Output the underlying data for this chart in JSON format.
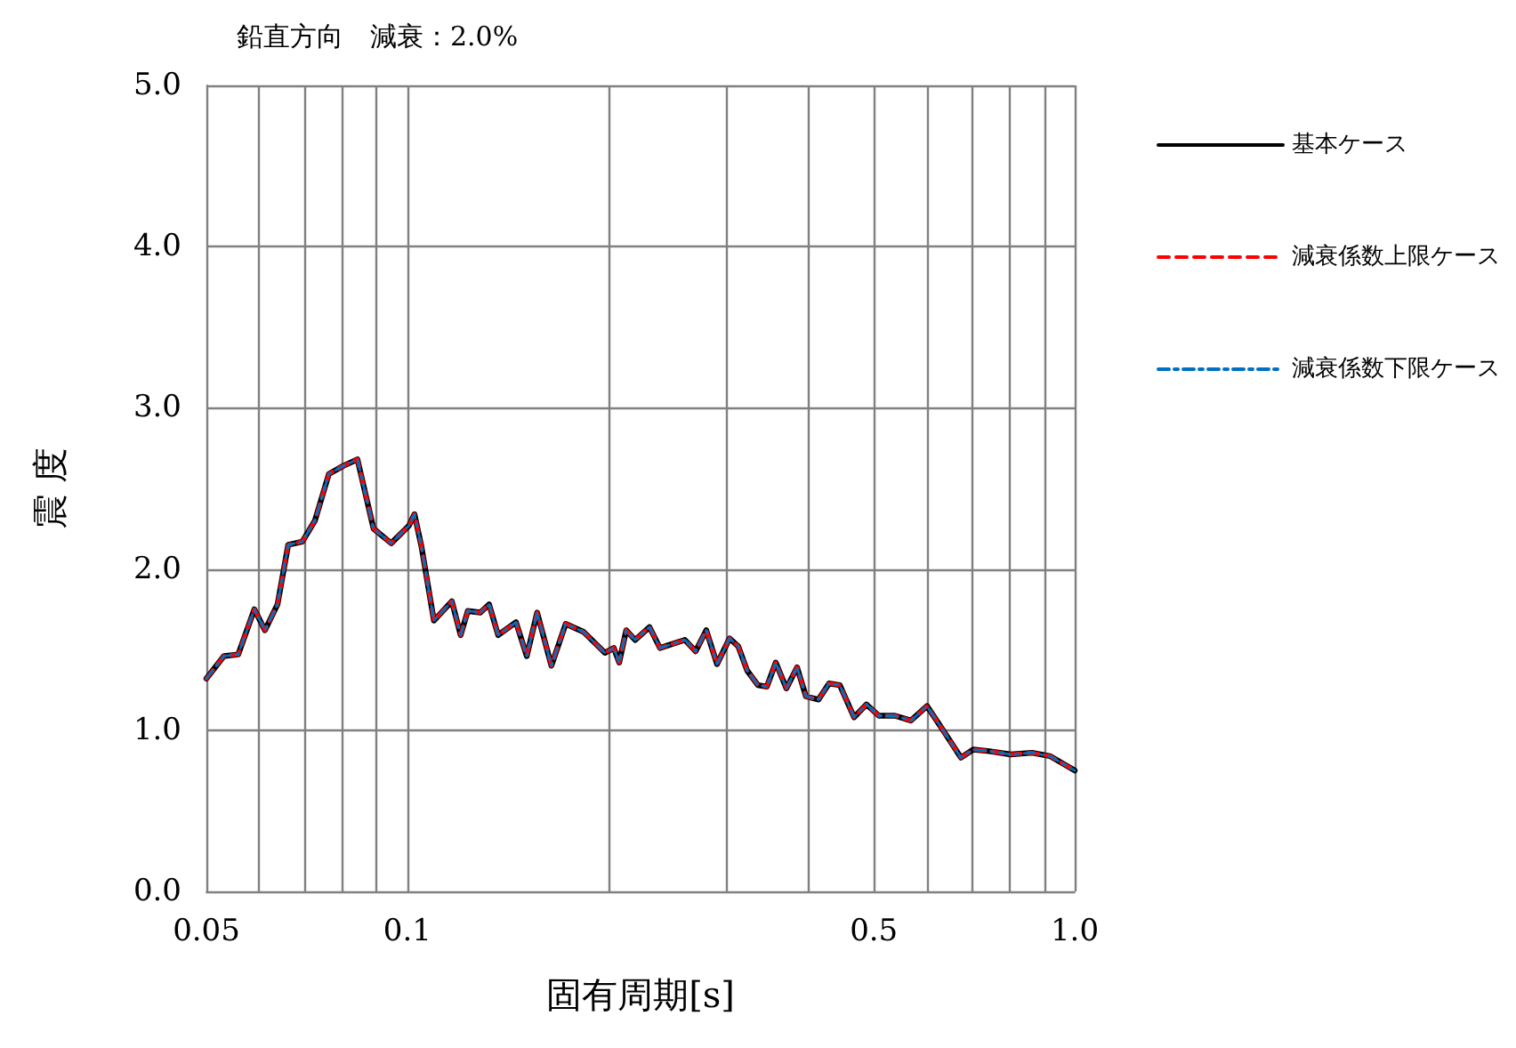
{
  "chart_data": {
    "type": "line",
    "title": "鉛直方向　減衰：2.0%",
    "xlabel": "固有周期[s]",
    "ylabel": "震 度",
    "x": [
      0.05,
      0.0531,
      0.0558,
      0.059,
      0.0612,
      0.0639,
      0.0663,
      0.0696,
      0.0727,
      0.0763,
      0.0802,
      0.0842,
      0.089,
      0.0946,
      0.1006,
      0.1025,
      0.105,
      0.1096,
      0.1166,
      0.1202,
      0.1232,
      0.1286,
      0.1326,
      0.1368,
      0.1455,
      0.151,
      0.1565,
      0.1644,
      0.1727,
      0.1837,
      0.1977,
      0.2039,
      0.2077,
      0.2128,
      0.2195,
      0.2306,
      0.2391,
      0.2606,
      0.2704,
      0.2805,
      0.2911,
      0.304,
      0.3133,
      0.323,
      0.3352,
      0.3457,
      0.3565,
      0.3698,
      0.3837,
      0.3956,
      0.413,
      0.4285,
      0.4446,
      0.4671,
      0.4875,
      0.5088,
      0.5378,
      0.5683,
      0.6007,
      0.6349,
      0.6752,
      0.7047,
      0.7447,
      0.8017,
      0.863,
      0.9177,
      1.0
    ],
    "series": [
      {
        "name": "基本ケース",
        "color": "#000000",
        "line_style": "solid",
        "values": [
          1.32,
          1.46,
          1.47,
          1.75,
          1.62,
          1.78,
          2.15,
          2.17,
          2.3,
          2.59,
          2.64,
          2.68,
          2.25,
          2.16,
          2.27,
          2.34,
          2.14,
          1.68,
          1.8,
          1.59,
          1.74,
          1.73,
          1.78,
          1.59,
          1.67,
          1.46,
          1.73,
          1.4,
          1.66,
          1.61,
          1.48,
          1.51,
          1.42,
          1.62,
          1.56,
          1.64,
          1.51,
          1.56,
          1.49,
          1.62,
          1.41,
          1.57,
          1.52,
          1.37,
          1.28,
          1.27,
          1.42,
          1.26,
          1.39,
          1.21,
          1.19,
          1.29,
          1.28,
          1.08,
          1.16,
          1.09,
          1.09,
          1.06,
          1.15,
          1.0,
          0.83,
          0.88,
          0.87,
          0.85,
          0.86,
          0.84,
          0.75
        ]
      },
      {
        "name": "減衰係数上限ケース",
        "color": "#ff0000",
        "line_style": "dashed",
        "values": [
          1.32,
          1.46,
          1.47,
          1.75,
          1.62,
          1.78,
          2.15,
          2.17,
          2.3,
          2.59,
          2.64,
          2.68,
          2.25,
          2.16,
          2.27,
          2.34,
          2.14,
          1.68,
          1.8,
          1.59,
          1.74,
          1.73,
          1.78,
          1.59,
          1.67,
          1.46,
          1.73,
          1.4,
          1.66,
          1.61,
          1.48,
          1.51,
          1.42,
          1.62,
          1.56,
          1.64,
          1.51,
          1.56,
          1.49,
          1.62,
          1.41,
          1.57,
          1.52,
          1.37,
          1.28,
          1.27,
          1.42,
          1.26,
          1.39,
          1.21,
          1.19,
          1.29,
          1.28,
          1.08,
          1.16,
          1.09,
          1.09,
          1.06,
          1.15,
          1.0,
          0.83,
          0.88,
          0.87,
          0.85,
          0.86,
          0.84,
          0.75
        ]
      },
      {
        "name": "減衰係数下限ケース",
        "color": "#0070c0",
        "line_style": "dashdot",
        "values": [
          1.32,
          1.46,
          1.47,
          1.75,
          1.62,
          1.78,
          2.15,
          2.17,
          2.3,
          2.59,
          2.64,
          2.68,
          2.25,
          2.16,
          2.27,
          2.34,
          2.14,
          1.68,
          1.8,
          1.59,
          1.74,
          1.73,
          1.78,
          1.59,
          1.67,
          1.46,
          1.73,
          1.4,
          1.66,
          1.61,
          1.48,
          1.51,
          1.42,
          1.62,
          1.56,
          1.64,
          1.51,
          1.56,
          1.49,
          1.62,
          1.41,
          1.57,
          1.52,
          1.37,
          1.28,
          1.27,
          1.42,
          1.26,
          1.39,
          1.21,
          1.19,
          1.29,
          1.28,
          1.08,
          1.16,
          1.09,
          1.09,
          1.06,
          1.15,
          1.0,
          0.83,
          0.88,
          0.87,
          0.85,
          0.86,
          0.84,
          0.75
        ]
      }
    ],
    "log": "x",
    "xlim": [
      0.05,
      1.0
    ],
    "xticks": [
      0.05,
      {
        "value": 0.06,
        "label": null
      },
      {
        "value": 0.07,
        "label": null
      },
      {
        "value": 0.08,
        "label": null
      },
      {
        "value": 0.09,
        "label": null
      },
      0.1,
      {
        "value": 0.2,
        "label": null
      },
      {
        "value": 0.3,
        "label": null
      },
      {
        "value": 0.4,
        "label": null
      },
      0.5,
      {
        "value": 0.6,
        "label": null
      },
      {
        "value": 0.7,
        "label": null
      },
      {
        "value": 0.8,
        "label": null
      },
      {
        "value": 0.9,
        "label": null
      },
      {
        "value": 1.0,
        "label": "1.0"
      }
    ],
    "ylim": [
      0,
      5
    ],
    "yticks": [
      {
        "value": 0,
        "label": "0.0"
      },
      {
        "value": 1,
        "label": "1.0"
      },
      {
        "value": 2,
        "label": "2.0"
      },
      {
        "value": 3,
        "label": "3.0"
      },
      {
        "value": 4,
        "label": "4.0"
      },
      {
        "value": 5,
        "label": "5.0"
      }
    ],
    "grid": true,
    "legend": "right",
    "marker": "none"
  }
}
